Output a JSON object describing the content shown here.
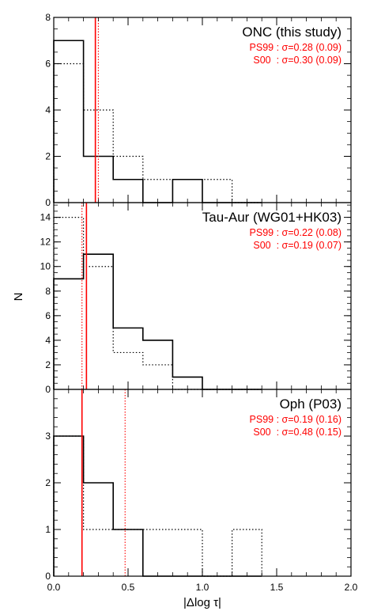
{
  "chart_data": [
    {
      "type": "bar",
      "panel": "ONC",
      "title": "ONC (this study)",
      "stats": [
        "PS99 : σ=0.28 (0.09)",
        "S00  : σ=0.30 (0.09)"
      ],
      "bin_edges": [
        0.0,
        0.2,
        0.4,
        0.6,
        0.8,
        1.0,
        1.2,
        1.4
      ],
      "series": [
        {
          "name": "PS99",
          "style": "solid",
          "values": [
            7,
            2,
            1,
            0,
            1,
            0,
            0
          ]
        },
        {
          "name": "S00",
          "style": "dotted",
          "values": [
            6,
            4,
            2,
            1,
            1,
            1,
            0
          ]
        }
      ],
      "vlines": [
        {
          "x": 0.28,
          "style": "solid"
        },
        {
          "x": 0.3,
          "style": "dotted"
        }
      ],
      "yticks": [
        "0",
        "2",
        "4",
        "6",
        "8"
      ],
      "ylim": [
        0,
        8
      ],
      "xlim": [
        0,
        2
      ]
    },
    {
      "type": "bar",
      "panel": "Tau-Aur",
      "title": "Tau-Aur (WG01+HK03)",
      "stats": [
        "PS99 : σ=0.22 (0.08)",
        "S00  : σ=0.19 (0.07)"
      ],
      "bin_edges": [
        0.0,
        0.2,
        0.4,
        0.6,
        0.8,
        1.0,
        1.2,
        1.4
      ],
      "series": [
        {
          "name": "PS99",
          "style": "solid",
          "values": [
            9,
            11,
            5,
            4,
            1,
            0,
            0
          ]
        },
        {
          "name": "S00",
          "style": "dotted",
          "values": [
            14,
            10,
            3,
            2,
            0,
            0,
            0
          ]
        }
      ],
      "vlines": [
        {
          "x": 0.22,
          "style": "solid"
        },
        {
          "x": 0.19,
          "style": "dotted"
        }
      ],
      "yticks": [
        "0",
        "2",
        "4",
        "6",
        "8",
        "10",
        "12",
        "14"
      ],
      "ylim": [
        0,
        15.2
      ],
      "xlim": [
        0,
        2
      ]
    },
    {
      "type": "bar",
      "panel": "Oph",
      "title": "Oph (P03)",
      "stats": [
        "PS99 : σ=0.19 (0.16)",
        "S00  : σ=0.48 (0.15)"
      ],
      "bin_edges": [
        0.0,
        0.2,
        0.4,
        0.6,
        0.8,
        1.0,
        1.2,
        1.4
      ],
      "series": [
        {
          "name": "PS99",
          "style": "solid",
          "values": [
            3,
            2,
            1,
            0,
            0,
            0,
            0
          ]
        },
        {
          "name": "S00",
          "style": "dotted",
          "values": [
            3,
            1,
            1,
            1,
            1,
            0,
            1
          ]
        }
      ],
      "vlines": [
        {
          "x": 0.19,
          "style": "solid"
        },
        {
          "x": 0.48,
          "style": "dotted"
        }
      ],
      "yticks": [
        "0",
        "1",
        "2",
        "3"
      ],
      "ylim": [
        0,
        4
      ],
      "xlim": [
        0,
        2
      ]
    }
  ],
  "axes": {
    "xlabel": "|Δlog τ|",
    "ylabel": "N",
    "xticks": [
      "0.0",
      "0.5",
      "1.0",
      "1.5",
      "2.0"
    ],
    "xtick_values": [
      0,
      0.5,
      1,
      1.5,
      2
    ]
  },
  "colors": {
    "histogram": "#000000",
    "vline": "#ff0000",
    "stats_text": "#ff0000"
  }
}
